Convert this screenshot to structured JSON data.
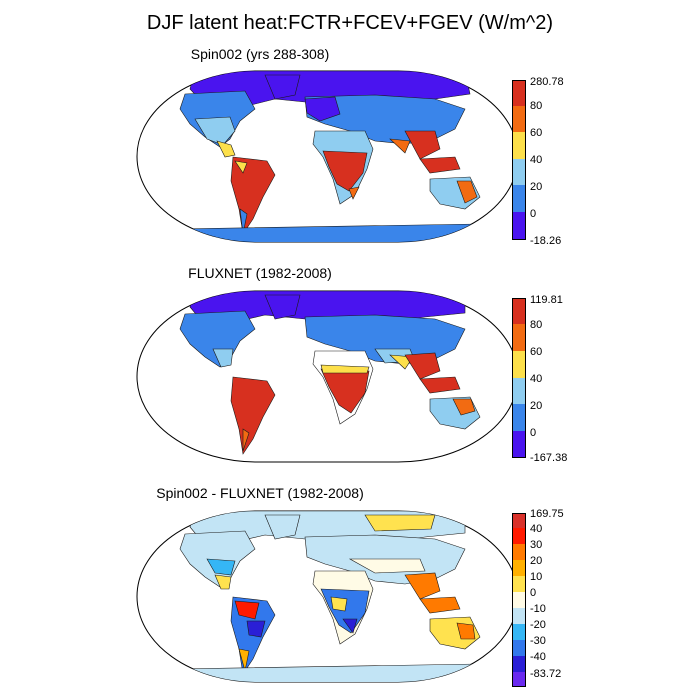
{
  "title": "DJF latent heat:FCTR+FCEV+FGEV (W/m^2)",
  "panels": [
    {
      "title": "Spin002 (yrs 288-308)",
      "colorbar": {
        "labels": [
          "280.78",
          "80",
          "60",
          "40",
          "20",
          "0",
          "-18.26"
        ],
        "colors": [
          "#d7301f",
          "#f26b12",
          "#fde04b",
          "#8fcdf0",
          "#3a85ea",
          "#4a14ef"
        ]
      }
    },
    {
      "title": "FLUXNET (1982-2008)",
      "colorbar": {
        "labels": [
          "119.81",
          "80",
          "60",
          "40",
          "20",
          "0",
          "-167.38"
        ],
        "colors": [
          "#d7301f",
          "#f26b12",
          "#fde04b",
          "#8fcdf0",
          "#3a85ea",
          "#4a14ef"
        ]
      }
    },
    {
      "title": "Spin002 - FLUXNET (1982-2008)",
      "colorbar": {
        "labels": [
          "169.75",
          "40",
          "30",
          "20",
          "10",
          "0",
          "-10",
          "-20",
          "-30",
          "-40",
          "-83.72"
        ],
        "colors": [
          "#d9312a",
          "#ff1a00",
          "#ff7a00",
          "#ffb000",
          "#ffe24f",
          "#fffbe6",
          "#c2e4f5",
          "#35b6f5",
          "#3278ec",
          "#2a1fd6",
          "#6a2af0"
        ]
      }
    }
  ],
  "map_colors": {
    "ocean": "#ffffff",
    "outline": "#000000",
    "coast": "#1a1a1a"
  }
}
